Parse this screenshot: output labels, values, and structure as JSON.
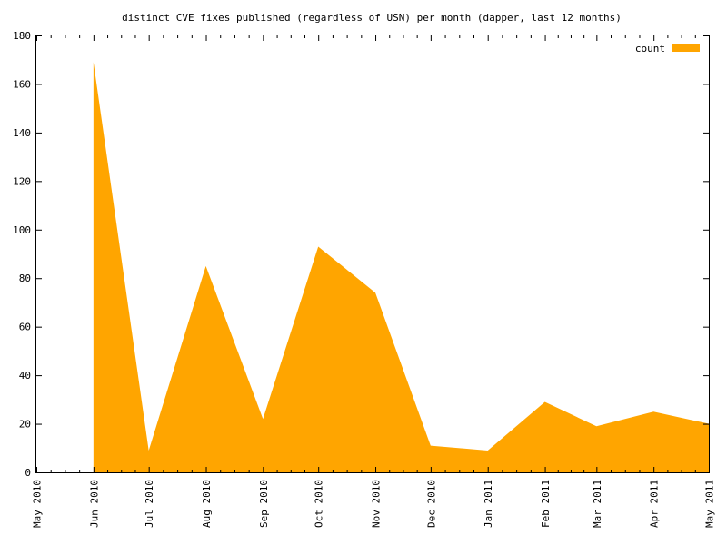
{
  "chart_data": {
    "type": "area",
    "title": "distinct CVE fixes published (regardless of USN) per month (dapper, last 12 months)",
    "xlabel": "",
    "ylabel": "",
    "x": [
      "May 2010",
      "Jun 2010",
      "Jul 2010",
      "Aug 2010",
      "Sep 2010",
      "Oct 2010",
      "Nov 2010",
      "Dec 2010",
      "Jan 2011",
      "Feb 2011",
      "Mar 2011",
      "Apr 2011",
      "May 2011"
    ],
    "x_dates": [
      "2010-05-01",
      "2010-06-01",
      "2010-07-01",
      "2010-08-01",
      "2010-09-01",
      "2010-10-01",
      "2010-11-01",
      "2010-12-01",
      "2011-01-01",
      "2011-02-01",
      "2011-03-01",
      "2011-04-01",
      "2011-05-01"
    ],
    "series": [
      {
        "name": "count",
        "color": "#ffa500",
        "points": [
          {
            "x": "2010-06-01",
            "y": 169
          },
          {
            "x": "2010-07-01",
            "y": 9
          },
          {
            "x": "2010-08-01",
            "y": 85
          },
          {
            "x": "2010-09-01",
            "y": 22
          },
          {
            "x": "2010-10-01",
            "y": 93
          },
          {
            "x": "2010-11-01",
            "y": 74
          },
          {
            "x": "2010-12-01",
            "y": 11
          },
          {
            "x": "2011-01-01",
            "y": 9
          },
          {
            "x": "2011-02-01",
            "y": 29
          },
          {
            "x": "2011-03-01",
            "y": 19
          },
          {
            "x": "2011-04-01",
            "y": 25
          },
          {
            "x": "2011-05-01",
            "y": 20
          }
        ]
      }
    ],
    "ylim": [
      0,
      180
    ],
    "yticks": [
      0,
      20,
      40,
      60,
      80,
      100,
      120,
      140,
      160,
      180
    ],
    "xlim": [
      "2010-05-01",
      "2011-05-01"
    ],
    "grid": false,
    "legend": {
      "position": "top-right",
      "entries": [
        "count"
      ]
    }
  }
}
